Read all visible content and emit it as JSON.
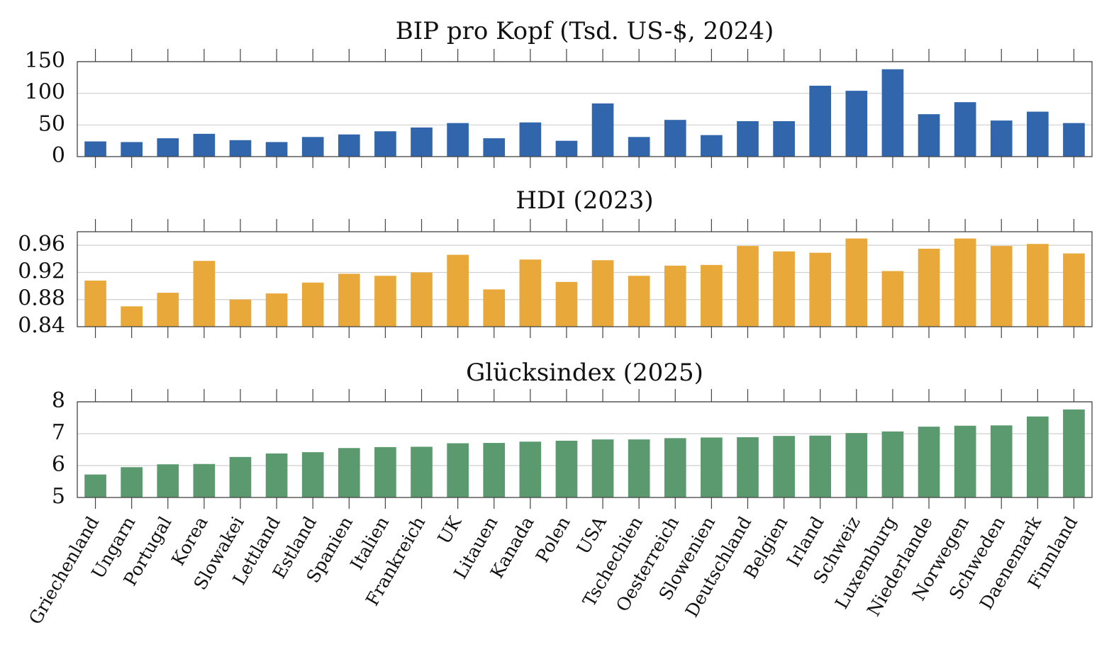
{
  "chart_data": [
    {
      "type": "bar",
      "title": "BIP pro Kopf (Tsd. US-$, 2024)",
      "xlabel": "",
      "ylabel": "",
      "ylim": [
        0,
        150
      ],
      "yticks": [
        0,
        50,
        100,
        150
      ],
      "ytick_labels": [
        "0",
        "50",
        "100",
        "150"
      ],
      "grid": true,
      "color": "#3166ad",
      "categories": [
        "Griechenland",
        "Ungarn",
        "Portugal",
        "Korea",
        "Slowakei",
        "Lettland",
        "Estland",
        "Spanien",
        "Italien",
        "Frankreich",
        "UK",
        "Litauen",
        "Kanada",
        "Polen",
        "USA",
        "Tschechien",
        "Oesterreich",
        "Slowenien",
        "Deutschland",
        "Belgien",
        "Irland",
        "Schweiz",
        "Luxemburg",
        "Niederlande",
        "Norwegen",
        "Schweden",
        "Daenemark",
        "Finnland"
      ],
      "values": [
        24,
        23,
        29,
        36,
        26,
        23,
        31,
        35,
        40,
        46,
        53,
        29,
        54,
        25,
        84,
        31,
        58,
        34,
        56,
        56,
        112,
        104,
        138,
        67,
        86,
        57,
        71,
        53
      ]
    },
    {
      "type": "bar",
      "title": "HDI (2023)",
      "xlabel": "",
      "ylabel": "",
      "ylim": [
        0.84,
        0.98
      ],
      "yticks": [
        0.84,
        0.88,
        0.92,
        0.96
      ],
      "ytick_labels": [
        "0.84",
        "0.88",
        "0.92",
        "0.96"
      ],
      "grid": true,
      "color": "#e8a93a",
      "categories": [
        "Griechenland",
        "Ungarn",
        "Portugal",
        "Korea",
        "Slowakei",
        "Lettland",
        "Estland",
        "Spanien",
        "Italien",
        "Frankreich",
        "UK",
        "Litauen",
        "Kanada",
        "Polen",
        "USA",
        "Tschechien",
        "Oesterreich",
        "Slowenien",
        "Deutschland",
        "Belgien",
        "Irland",
        "Schweiz",
        "Luxemburg",
        "Niederlande",
        "Norwegen",
        "Schweden",
        "Daenemark",
        "Finnland"
      ],
      "values": [
        0.908,
        0.87,
        0.89,
        0.937,
        0.88,
        0.889,
        0.905,
        0.918,
        0.915,
        0.92,
        0.946,
        0.895,
        0.939,
        0.906,
        0.938,
        0.915,
        0.93,
        0.931,
        0.959,
        0.951,
        0.949,
        0.97,
        0.922,
        0.955,
        0.97,
        0.959,
        0.962,
        0.948
      ]
    },
    {
      "type": "bar",
      "title": "Glücksindex (2025)",
      "xlabel": "",
      "ylabel": "",
      "ylim": [
        5,
        8
      ],
      "yticks": [
        5,
        6,
        7,
        8
      ],
      "ytick_labels": [
        "5",
        "6",
        "7",
        "8"
      ],
      "grid": true,
      "color": "#5a9a6e",
      "categories": [
        "Griechenland",
        "Ungarn",
        "Portugal",
        "Korea",
        "Slowakei",
        "Lettland",
        "Estland",
        "Spanien",
        "Italien",
        "Frankreich",
        "UK",
        "Litauen",
        "Kanada",
        "Polen",
        "USA",
        "Tschechien",
        "Oesterreich",
        "Slowenien",
        "Deutschland",
        "Belgien",
        "Irland",
        "Schweiz",
        "Luxemburg",
        "Niederlande",
        "Norwegen",
        "Schweden",
        "Daenemark",
        "Finnland"
      ],
      "values": [
        5.72,
        5.95,
        6.04,
        6.05,
        6.27,
        6.38,
        6.42,
        6.55,
        6.58,
        6.59,
        6.7,
        6.71,
        6.75,
        6.78,
        6.82,
        6.82,
        6.86,
        6.88,
        6.89,
        6.93,
        6.94,
        7.02,
        7.07,
        7.22,
        7.25,
        7.26,
        7.54,
        7.76
      ]
    }
  ]
}
